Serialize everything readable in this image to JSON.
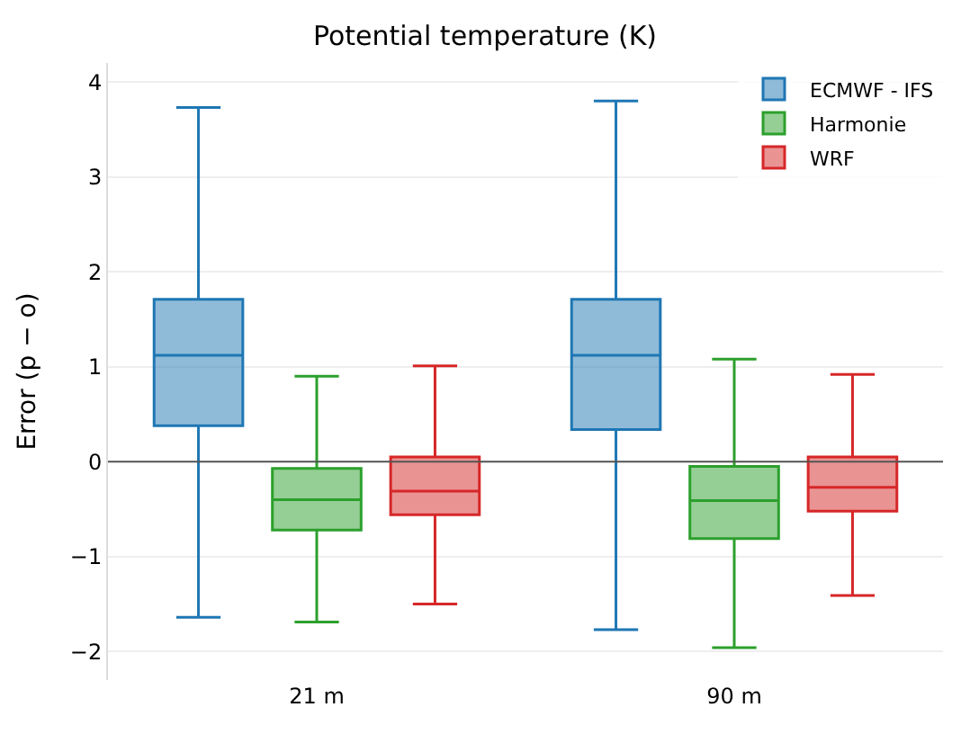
{
  "chart_data": {
    "type": "box",
    "title": "Potential temperature (K)",
    "ylabel": "Error (p − o)",
    "categories": [
      "21 m",
      "90 m"
    ],
    "series": [
      {
        "name": "ECMWF - IFS",
        "color": "#1f77b4",
        "boxes": [
          {
            "low": -1.64,
            "q1": 0.38,
            "median": 1.12,
            "q3": 1.71,
            "high": 3.73
          },
          {
            "low": -1.77,
            "q1": 0.34,
            "median": 1.12,
            "q3": 1.71,
            "high": 3.8
          }
        ]
      },
      {
        "name": "Harmonie",
        "color": "#2ca02c",
        "boxes": [
          {
            "low": -1.69,
            "q1": -0.72,
            "median": -0.4,
            "q3": -0.07,
            "high": 0.9
          },
          {
            "low": -1.96,
            "q1": -0.81,
            "median": -0.41,
            "q3": -0.05,
            "high": 1.08
          }
        ]
      },
      {
        "name": "WRF",
        "color": "#d62728",
        "boxes": [
          {
            "low": -1.5,
            "q1": -0.56,
            "median": -0.31,
            "q3": 0.05,
            "high": 1.01
          },
          {
            "low": -1.41,
            "q1": -0.52,
            "median": -0.27,
            "q3": 0.05,
            "high": 0.92
          }
        ]
      }
    ],
    "ylim": [
      -2.3,
      4.2
    ],
    "yticks": [
      {
        "value": -2,
        "label": "−2"
      },
      {
        "value": -1,
        "label": "−1"
      },
      0,
      1,
      2,
      3,
      4
    ],
    "ref_lines": [
      {
        "axis": "y",
        "value": 0,
        "color": "#555555"
      }
    ],
    "grid": "y",
    "legend": "top right"
  }
}
